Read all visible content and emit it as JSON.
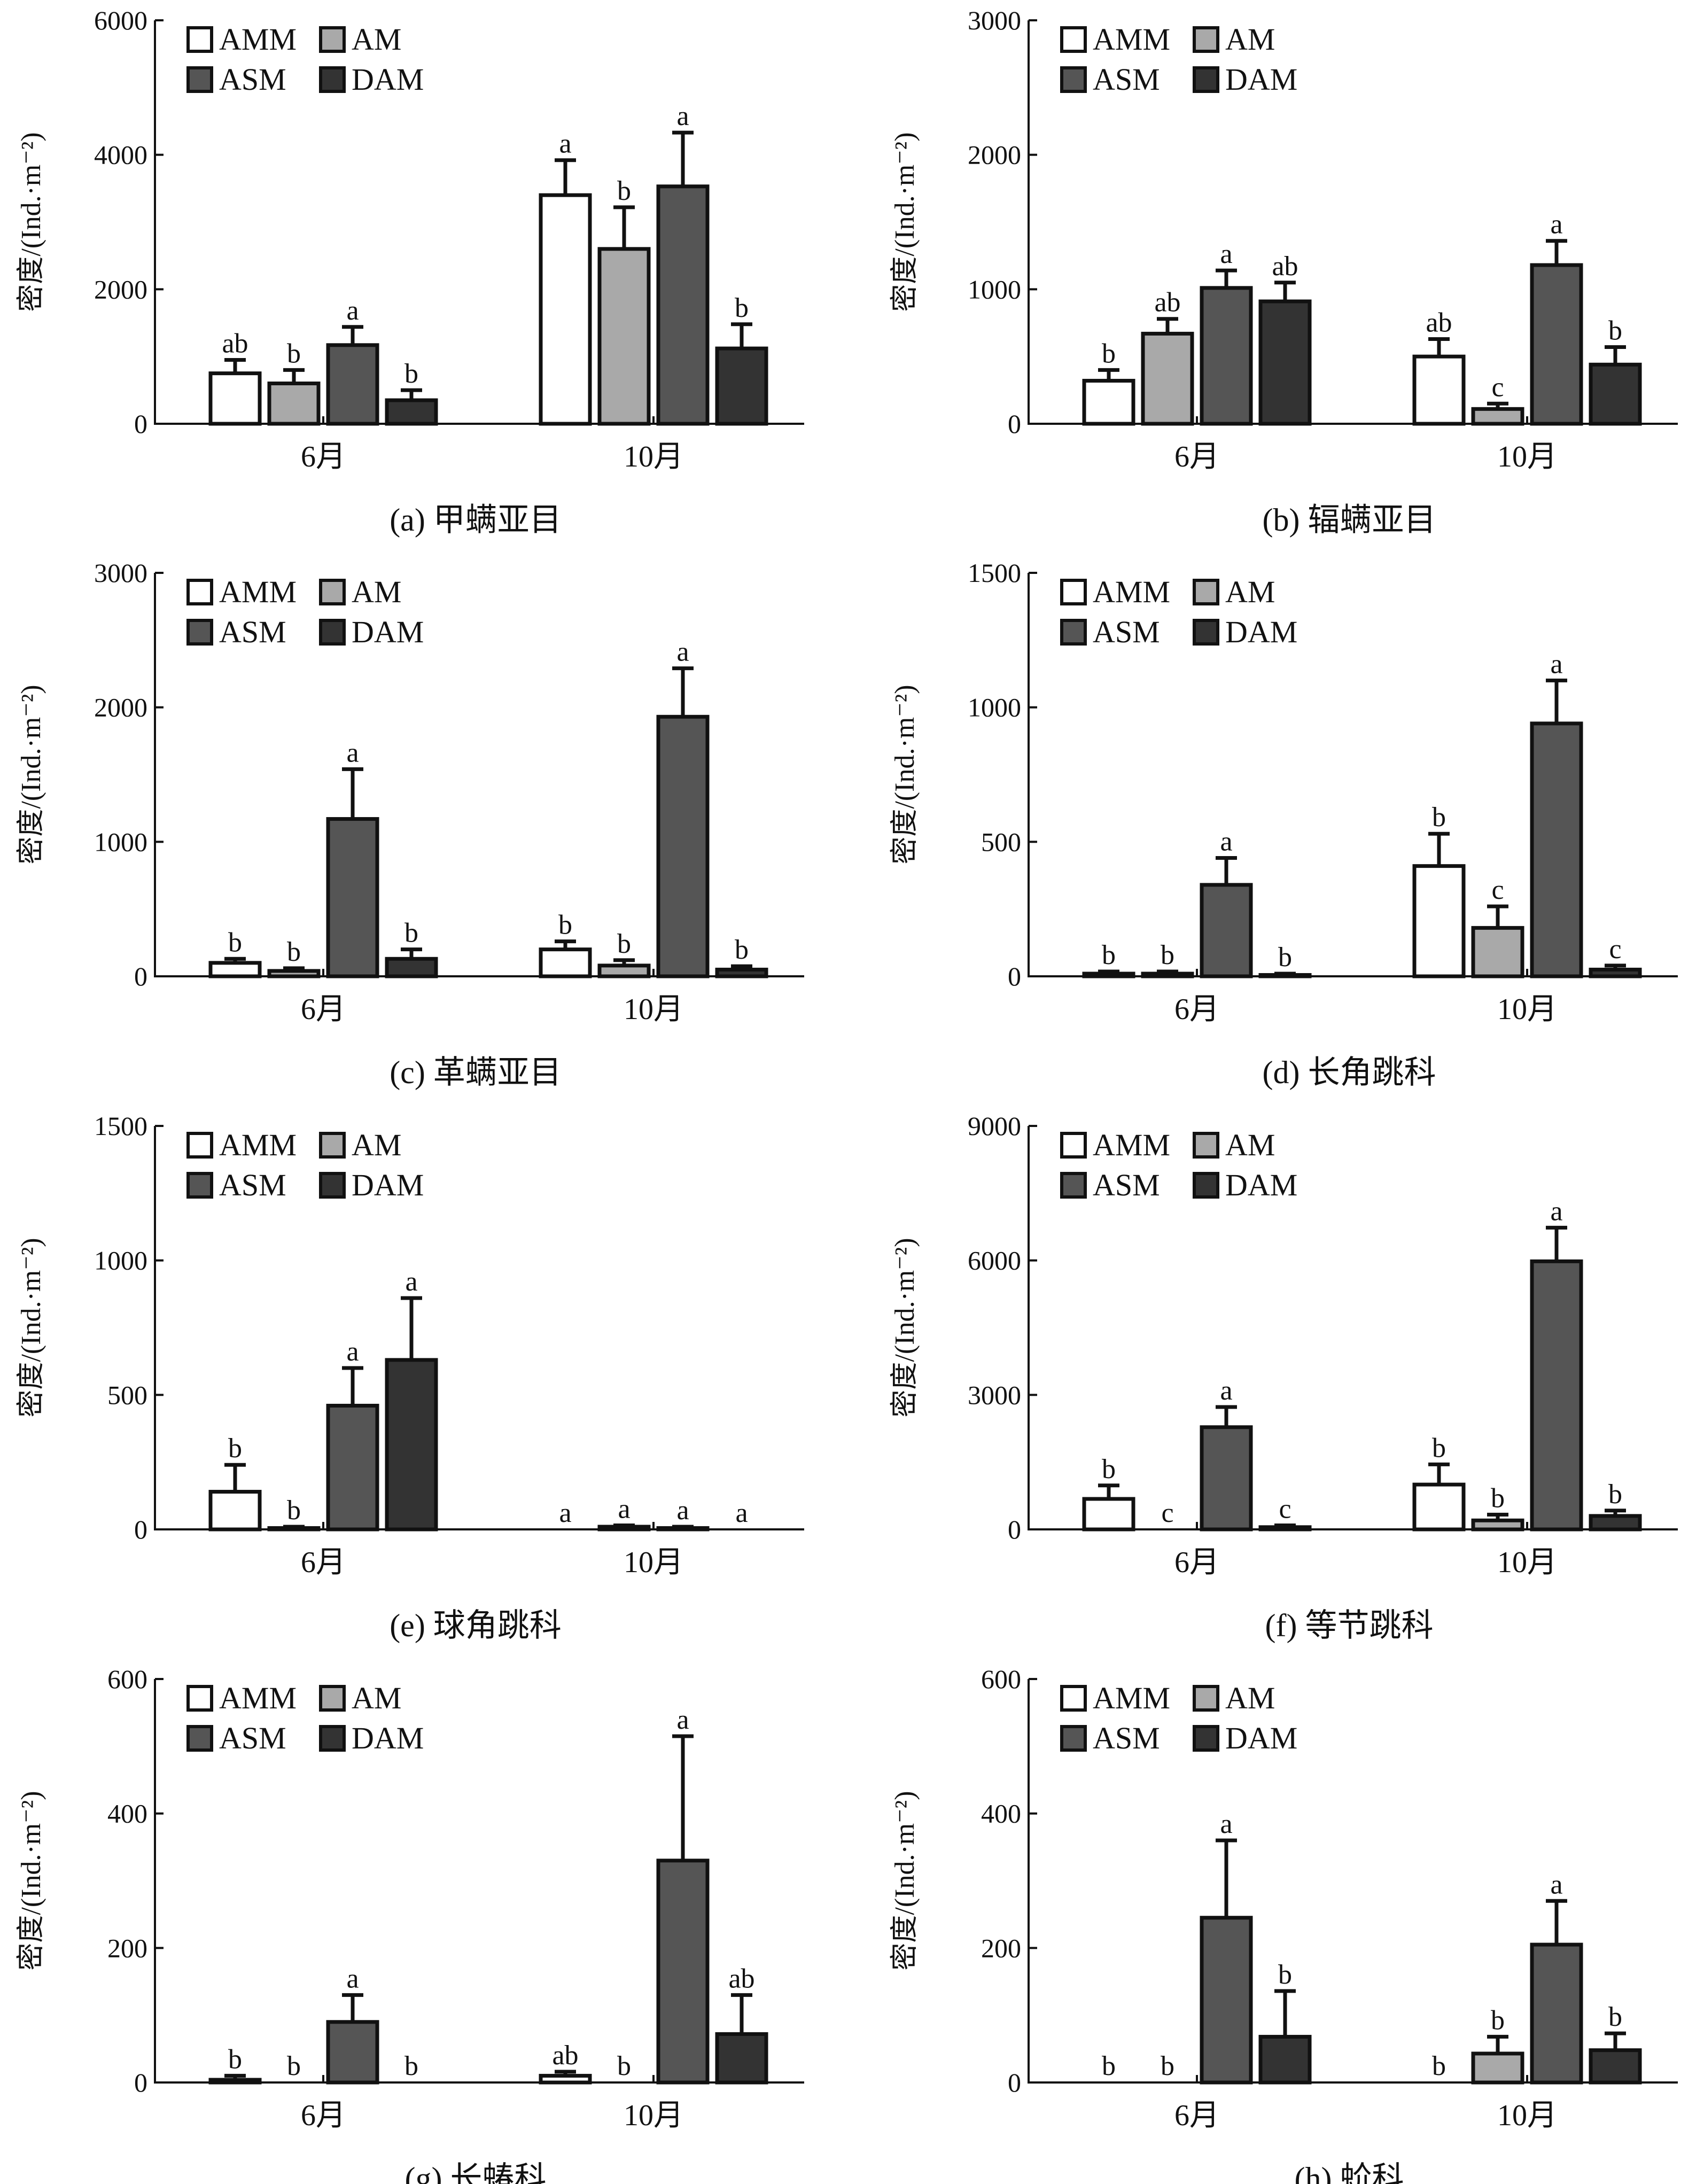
{
  "legend_labels": [
    "AMM",
    "AM",
    "ASM",
    "DAM"
  ],
  "colors": {
    "AMM": "#ffffff",
    "AM": "#a9a9a9",
    "ASM": "#555555",
    "DAM": "#333333",
    "outline": "#111111"
  },
  "chart_data": [
    {
      "type": "bar",
      "caption": "(a) 甲螨亚目",
      "ylabel": "密度/(Ind.·m⁻²)",
      "ylim": [
        0,
        6000
      ],
      "yticks": [
        0,
        2000,
        4000,
        6000
      ],
      "categories": [
        "6月",
        "10月"
      ],
      "series": [
        {
          "name": "AMM",
          "values": [
            750,
            3400
          ],
          "errors": [
            200,
            520
          ],
          "labels": [
            "ab",
            "a"
          ]
        },
        {
          "name": "AM",
          "values": [
            600,
            2600
          ],
          "errors": [
            200,
            620
          ],
          "labels": [
            "b",
            "b"
          ]
        },
        {
          "name": "ASM",
          "values": [
            1170,
            3530
          ],
          "errors": [
            270,
            800
          ],
          "labels": [
            "a",
            "a"
          ]
        },
        {
          "name": "DAM",
          "values": [
            350,
            1120
          ],
          "errors": [
            150,
            360
          ],
          "labels": [
            "b",
            "b"
          ]
        }
      ]
    },
    {
      "type": "bar",
      "caption": "(b) 辐螨亚目",
      "ylabel": "密度/(Ind.·m⁻²)",
      "ylim": [
        0,
        3000
      ],
      "yticks": [
        0,
        1000,
        2000,
        3000
      ],
      "categories": [
        "6月",
        "10月"
      ],
      "series": [
        {
          "name": "AMM",
          "values": [
            320,
            500
          ],
          "errors": [
            80,
            130
          ],
          "labels": [
            "b",
            "ab"
          ]
        },
        {
          "name": "AM",
          "values": [
            670,
            110
          ],
          "errors": [
            110,
            40
          ],
          "labels": [
            "ab",
            "c"
          ]
        },
        {
          "name": "ASM",
          "values": [
            1010,
            1180
          ],
          "errors": [
            130,
            180
          ],
          "labels": [
            "a",
            "a"
          ]
        },
        {
          "name": "DAM",
          "values": [
            910,
            440
          ],
          "errors": [
            140,
            130
          ],
          "labels": [
            "ab",
            "b"
          ]
        }
      ]
    },
    {
      "type": "bar",
      "caption": "(c) 革螨亚目",
      "ylabel": "密度/(Ind.·m⁻²)",
      "ylim": [
        0,
        3000
      ],
      "yticks": [
        0,
        1000,
        2000,
        3000
      ],
      "categories": [
        "6月",
        "10月"
      ],
      "series": [
        {
          "name": "AMM",
          "values": [
            100,
            200
          ],
          "errors": [
            30,
            60
          ],
          "labels": [
            "b",
            "b"
          ]
        },
        {
          "name": "AM",
          "values": [
            40,
            80
          ],
          "errors": [
            20,
            40
          ],
          "labels": [
            "b",
            "b"
          ]
        },
        {
          "name": "ASM",
          "values": [
            1170,
            1930
          ],
          "errors": [
            370,
            360
          ],
          "labels": [
            "a",
            "a"
          ]
        },
        {
          "name": "DAM",
          "values": [
            130,
            50
          ],
          "errors": [
            70,
            25
          ],
          "labels": [
            "b",
            "b"
          ]
        }
      ]
    },
    {
      "type": "bar",
      "caption": "(d) 长角跳科",
      "ylabel": "密度/(Ind.·m⁻²)",
      "ylim": [
        0,
        1500
      ],
      "yticks": [
        0,
        500,
        1000,
        1500
      ],
      "categories": [
        "6月",
        "10月"
      ],
      "series": [
        {
          "name": "AMM",
          "values": [
            10,
            410
          ],
          "errors": [
            8,
            120
          ],
          "labels": [
            "b",
            "b"
          ]
        },
        {
          "name": "AM",
          "values": [
            10,
            180
          ],
          "errors": [
            8,
            80
          ],
          "labels": [
            "b",
            "c"
          ]
        },
        {
          "name": "ASM",
          "values": [
            340,
            940
          ],
          "errors": [
            100,
            160
          ],
          "labels": [
            "a",
            "a"
          ]
        },
        {
          "name": "DAM",
          "values": [
            5,
            25
          ],
          "errors": [
            5,
            15
          ],
          "labels": [
            "b",
            "c"
          ]
        }
      ]
    },
    {
      "type": "bar",
      "caption": "(e) 球角跳科",
      "ylabel": "密度/(Ind.·m⁻²)",
      "ylim": [
        0,
        1500
      ],
      "yticks": [
        0,
        500,
        1000,
        1500
      ],
      "categories": [
        "6月",
        "10月"
      ],
      "series": [
        {
          "name": "AMM",
          "values": [
            140,
            0
          ],
          "errors": [
            100,
            0
          ],
          "labels": [
            "b",
            "a"
          ]
        },
        {
          "name": "AM",
          "values": [
            5,
            10
          ],
          "errors": [
            5,
            5
          ],
          "labels": [
            "b",
            "a"
          ]
        },
        {
          "name": "ASM",
          "values": [
            460,
            5
          ],
          "errors": [
            140,
            5
          ],
          "labels": [
            "a",
            "a"
          ]
        },
        {
          "name": "DAM",
          "values": [
            630,
            0
          ],
          "errors": [
            230,
            0
          ],
          "labels": [
            "a",
            "a"
          ]
        }
      ]
    },
    {
      "type": "bar",
      "caption": "(f) 等节跳科",
      "ylabel": "密度/(Ind.·m⁻²)",
      "ylim": [
        0,
        9000
      ],
      "yticks": [
        0,
        3000,
        6000,
        9000
      ],
      "categories": [
        "6月",
        "10月"
      ],
      "series": [
        {
          "name": "AMM",
          "values": [
            680,
            1000
          ],
          "errors": [
            300,
            450
          ],
          "labels": [
            "b",
            "b"
          ]
        },
        {
          "name": "AM",
          "values": [
            0,
            200
          ],
          "errors": [
            0,
            130
          ],
          "labels": [
            "c",
            "b"
          ]
        },
        {
          "name": "ASM",
          "values": [
            2280,
            5980
          ],
          "errors": [
            450,
            750
          ],
          "labels": [
            "a",
            "a"
          ]
        },
        {
          "name": "DAM",
          "values": [
            50,
            300
          ],
          "errors": [
            40,
            120
          ],
          "labels": [
            "c",
            "b"
          ]
        }
      ]
    },
    {
      "type": "bar",
      "caption": "(g) 长蝽科",
      "ylabel": "密度/(Ind.·m⁻²)",
      "ylim": [
        0,
        600
      ],
      "yticks": [
        0,
        200,
        400,
        600
      ],
      "categories": [
        "6月",
        "10月"
      ],
      "series": [
        {
          "name": "AMM",
          "values": [
            4,
            10
          ],
          "errors": [
            6,
            6
          ],
          "labels": [
            "b",
            "ab"
          ]
        },
        {
          "name": "AM",
          "values": [
            0,
            0
          ],
          "errors": [
            0,
            0
          ],
          "labels": [
            "b",
            "b"
          ]
        },
        {
          "name": "ASM",
          "values": [
            90,
            330
          ],
          "errors": [
            40,
            185
          ],
          "labels": [
            "a",
            "a"
          ]
        },
        {
          "name": "DAM",
          "values": [
            0,
            72
          ],
          "errors": [
            0,
            58
          ],
          "labels": [
            "b",
            "ab"
          ]
        }
      ]
    },
    {
      "type": "bar",
      "caption": "(h) 蚧科",
      "ylabel": "密度/(Ind.·m⁻²)",
      "ylim": [
        0,
        600
      ],
      "yticks": [
        0,
        200,
        400,
        600
      ],
      "categories": [
        "6月",
        "10月"
      ],
      "series": [
        {
          "name": "AMM",
          "values": [
            0,
            0
          ],
          "errors": [
            0,
            0
          ],
          "labels": [
            "b",
            "b"
          ]
        },
        {
          "name": "AM",
          "values": [
            0,
            43
          ],
          "errors": [
            0,
            25
          ],
          "labels": [
            "b",
            "b"
          ]
        },
        {
          "name": "ASM",
          "values": [
            245,
            205
          ],
          "errors": [
            115,
            65
          ],
          "labels": [
            "a",
            "a"
          ]
        },
        {
          "name": "DAM",
          "values": [
            68,
            48
          ],
          "errors": [
            68,
            25
          ],
          "labels": [
            "b",
            "b"
          ]
        }
      ]
    }
  ]
}
